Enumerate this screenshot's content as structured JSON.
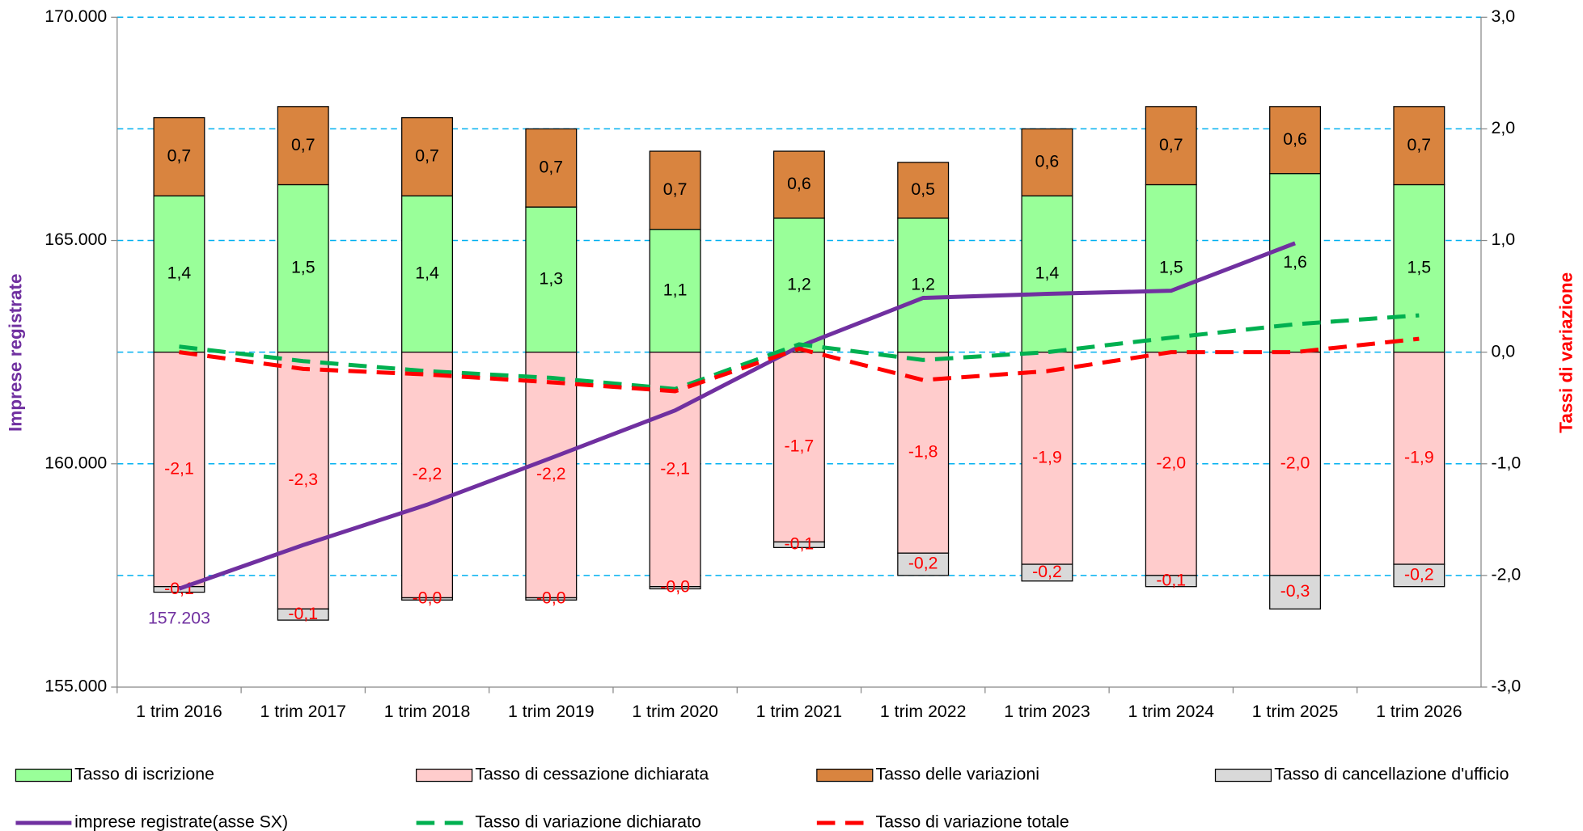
{
  "chart_data": {
    "type": "bar",
    "categories": [
      "1 trim 2016",
      "1 trim 2017",
      "1 trim 2018",
      "1 trim 2019",
      "1 trim 2020",
      "1 trim 2021",
      "1 trim 2022",
      "1 trim 2023",
      "1 trim 2024",
      "1 trim 2025",
      "1 trim 2026"
    ],
    "y_label": "Imprese registrate",
    "y2_label": "Tassi di variazione",
    "ylim": [
      155000,
      170000
    ],
    "yticks": [
      {
        "value": 155000,
        "label": "155.000"
      },
      {
        "value": 160000,
        "label": "160.000"
      },
      {
        "value": 165000,
        "label": "165.000"
      },
      {
        "value": 170000,
        "label": "170.000"
      }
    ],
    "y2lim": [
      -3,
      3
    ],
    "y2ticks": [
      {
        "value": -3,
        "label": "-3,0"
      },
      {
        "value": -2,
        "label": "-2,0"
      },
      {
        "value": -1,
        "label": "-1,0"
      },
      {
        "value": 0,
        "label": "0,0"
      },
      {
        "value": 1,
        "label": "1,0"
      },
      {
        "value": 2,
        "label": "2,0"
      },
      {
        "value": 3,
        "label": "3,0"
      }
    ],
    "grid": true,
    "series": [
      {
        "name": "Tasso di iscrizione",
        "kind": "bar",
        "axis": "y2",
        "color": "#99ff99",
        "label_color": "#000000",
        "values": [
          1.4,
          1.5,
          1.4,
          1.3,
          1.1,
          1.2,
          1.2,
          1.4,
          1.5,
          1.6,
          1.5
        ],
        "value_labels": [
          "1,4",
          "1,5",
          "1,4",
          "1,3",
          "1,1",
          "1,2",
          "1,2",
          "1,4",
          "1,5",
          "1,6",
          "1,5"
        ]
      },
      {
        "name": "Tasso di cessazione dichiarata",
        "kind": "bar",
        "axis": "y2",
        "color": "#ffcccc",
        "label_color": "#ff0000",
        "values": [
          -2.1,
          -2.3,
          -2.2,
          -2.2,
          -2.1,
          -1.7,
          -1.8,
          -1.9,
          -2.0,
          -2.0,
          -1.9
        ],
        "value_labels": [
          "-2,1",
          "-2,3",
          "-2,2",
          "-2,2",
          "-2,1",
          "-1,7",
          "-1,8",
          "-1,9",
          "-2,0",
          "-2,0",
          "-1,9"
        ]
      },
      {
        "name": "Tasso delle variazioni",
        "kind": "bar",
        "axis": "y2",
        "color": "#d9843f",
        "label_color": "#000000",
        "values": [
          0.7,
          0.7,
          0.7,
          0.7,
          0.7,
          0.6,
          0.5,
          0.6,
          0.7,
          0.6,
          0.7
        ],
        "value_labels": [
          "0,7",
          "0,7",
          "0,7",
          "0,7",
          "0,7",
          "0,6",
          "0,5",
          "0,6",
          "0,7",
          "0,6",
          "0,7"
        ]
      },
      {
        "name": "Tasso di cancellazione d'ufficio",
        "kind": "bar",
        "axis": "y2",
        "color": "#d9d9d9",
        "label_color": "#ff0000",
        "values": [
          -0.05,
          -0.1,
          -0.02,
          -0.02,
          -0.02,
          -0.05,
          -0.2,
          -0.15,
          -0.1,
          -0.3,
          -0.2
        ],
        "value_labels": [
          "-0,1",
          "-0,1",
          "-0,0",
          "-0,0",
          "-0,0",
          "-0,1",
          "-0,2",
          "-0,2",
          "-0,1",
          "-0,3",
          "-0,2"
        ]
      },
      {
        "name": "imprese registrate(asse SX)",
        "kind": "line",
        "axis": "y",
        "color": "#7030a0",
        "dash": false,
        "values": [
          157203,
          158180,
          159085,
          160130,
          161195,
          162625,
          163715,
          163805,
          163875,
          164940,
          null
        ],
        "value_labels": [
          "157.203",
          null,
          null,
          null,
          null,
          null,
          null,
          null,
          null,
          null,
          null
        ]
      },
      {
        "name": "Tasso di variazione dichiarato",
        "kind": "line",
        "axis": "y2",
        "color": "#00b050",
        "dash": true,
        "values": [
          0.05,
          -0.08,
          -0.17,
          -0.23,
          -0.33,
          0.07,
          -0.07,
          0.0,
          0.13,
          0.25,
          0.33
        ]
      },
      {
        "name": "Tasso di variazione totale",
        "kind": "line",
        "axis": "y2",
        "color": "#ff0000",
        "dash": true,
        "values": [
          0.0,
          -0.15,
          -0.2,
          -0.27,
          -0.35,
          0.03,
          -0.25,
          -0.17,
          0.0,
          0.0,
          0.12
        ]
      }
    ]
  }
}
